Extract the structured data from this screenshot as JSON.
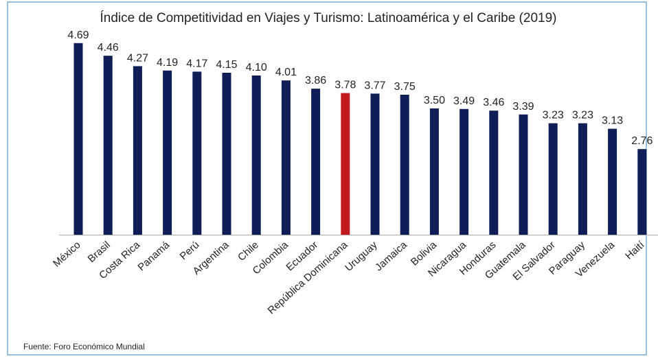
{
  "chart_data": {
    "type": "bar",
    "title": "Índice de Competitividad en Viajes y Turismo: Latinoamérica y el Caribe (2019)",
    "categories": [
      "México",
      "Brasil",
      "Costa Rica",
      "Panamá",
      "Perú",
      "Argentina",
      "Chile",
      "Colombia",
      "Ecuador",
      "República Dominicana",
      "Uruguay",
      "Jamaica",
      "Bolivia",
      "Nicaragua",
      "Honduras",
      "Guatemala",
      "El Salvador",
      "Paraguay",
      "Venezuela",
      "Haití"
    ],
    "values": [
      4.69,
      4.46,
      4.27,
      4.19,
      4.17,
      4.15,
      4.1,
      4.01,
      3.86,
      3.78,
      3.77,
      3.75,
      3.5,
      3.49,
      3.46,
      3.39,
      3.23,
      3.23,
      3.13,
      2.76
    ],
    "value_labels": [
      "4.69",
      "4.46",
      "4.27",
      "4.19",
      "4.17",
      "4.15",
      "4.10",
      "4.01",
      "3.86",
      "3.78",
      "3.77",
      "3.75",
      "3.50",
      "3.49",
      "3.46",
      "3.39",
      "3.23",
      "3.23",
      "3.13",
      "2.76"
    ],
    "highlight_index": 9,
    "colors": {
      "bar": "#0f1e57",
      "highlight": "#c0181c",
      "axis": "#aaaaaa"
    },
    "xlabel": "",
    "ylabel": "",
    "ylim": [
      1.2,
      4.8
    ],
    "grid": false,
    "legend": "none"
  },
  "source": "Fuente: Foro Económico Mundial"
}
